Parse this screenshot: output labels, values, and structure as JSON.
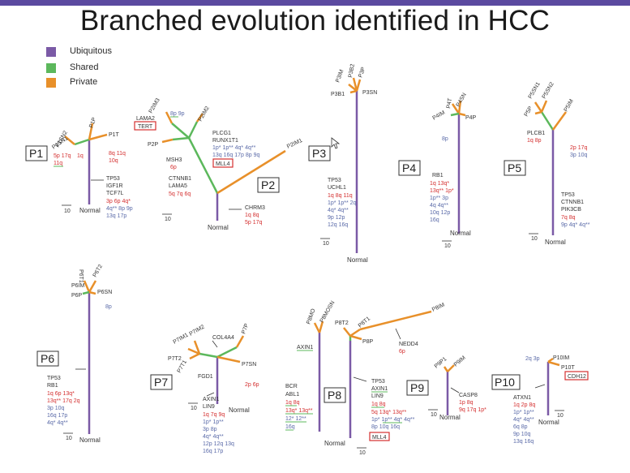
{
  "title": "Branched evolution identified in HCC",
  "legend": [
    {
      "label": "Ubiquitous",
      "color": "#7b5aa6"
    },
    {
      "label": "Shared",
      "color": "#5cb85c"
    },
    {
      "label": "Private",
      "color": "#e8902a"
    }
  ],
  "colors": {
    "ubiquitous": "#7b5aa6",
    "shared": "#5cb85c",
    "private": "#e8902a",
    "red": "#d43030",
    "blue": "#5a6aa8",
    "black": "#333333"
  },
  "common": {
    "normal": "Normal",
    "scale": "10"
  },
  "panels": {
    "P1": {
      "label": "P1",
      "samples": [
        "P1SN2",
        "P1P",
        "P1SN1",
        "P1T"
      ],
      "annotations": {
        "left_a": "5p 17q",
        "left_b": "1q",
        "left_c": "11q",
        "right_a": "8q 11q",
        "right_b": "10q",
        "genes": [
          "TP53",
          "IGF1R",
          "TCF7L"
        ],
        "trunk_a": "3p 6p 4q*",
        "trunk_b": "4q** 8p 9p",
        "trunk_c": "13q 17p"
      }
    },
    "P2": {
      "label": "P2",
      "samples": [
        "P2IM3",
        "P2IM2",
        "P2P",
        "P2IM1"
      ],
      "annotations": {
        "lama2": "LAMA2",
        "tert": "TERT",
        "top": "8p 9p",
        "plcg": "PLCG1",
        "runx": "RUNX1T1",
        "mid_a": "1p* 1p** 4q* 4q**",
        "mid_b": "13q 16q 17p 8p 9q",
        "msh3": "MSH3",
        "p6p": "6p",
        "mll4": "MLL4",
        "ctnnb1": "CTNNB1",
        "lama5": "LAMA5",
        "trunk": "5q 7q 6q",
        "chrm3": "CHRM3",
        "chr_a": "1q 8q",
        "chr_b": "5p 17q"
      }
    },
    "P3": {
      "label": "P3",
      "samples": [
        "P3IM",
        "P3B2",
        "P3P",
        "P3B1",
        "P3SN"
      ],
      "annotations": {
        "genes": [
          "TP53",
          "UCHL1"
        ],
        "a": "1q 8q 11q",
        "b": "1p* 1p** 2q",
        "c": "4q* 4q**",
        "d": "9p 12p",
        "e": "12q 16q"
      }
    },
    "P4": {
      "label": "P4",
      "samples": [
        "P4T",
        "P4SN",
        "P4IM",
        "P4P"
      ],
      "annotations": {
        "side": "8p",
        "gene": "RB1",
        "a": "1q 13q*",
        "b": "13q** 1p*",
        "c": "1p** 3p",
        "d": "4q 4q**",
        "e": "10q 12p",
        "f": "16q"
      }
    },
    "P5": {
      "label": "P5",
      "samples": [
        "P5SN1",
        "P5SN2",
        "P5P",
        "P5IM"
      ],
      "annotations": {
        "plcb1": "PLCB1",
        "left": "1q 8p",
        "r_a": "2p 17q",
        "r_b": "3p 10q",
        "genes": [
          "TP53",
          "CTNNB1",
          "PIK3CB"
        ],
        "a": "7q 8q",
        "b": "9p 4q* 4q**"
      }
    },
    "P6": {
      "label": "P6",
      "samples": [
        "P6T1",
        "P6T2",
        "P6IM",
        "P6P",
        "P6SN"
      ],
      "annotations": {
        "side": "8p",
        "genes": [
          "TP53",
          "RB1"
        ],
        "a": "1q 6p 13q*",
        "b": "13q** 17q 2q",
        "c": "3p 10q",
        "d": "16q 17p",
        "e": "4q* 4q**"
      }
    },
    "P7": {
      "label": "P7",
      "samples": [
        "P7IM1",
        "P7IM2",
        "P7P",
        "P7T2",
        "P7SN",
        "P7T1"
      ],
      "annotations": {
        "col4a4": "COL4A4",
        "fgd1": "FGD1",
        "side": "2p 6p",
        "genes": [
          "AXIN1",
          "LIN9"
        ],
        "a": "1q 7q 9q",
        "b": "1p* 1p**",
        "c": "3p 8p",
        "d": "4q* 4q**",
        "e": "12p 12q 13q",
        "f": "16q 17p"
      }
    },
    "P8": {
      "label": "P8",
      "samples": [
        "P8MO",
        "P8MOSN",
        "P8T1",
        "P8T2",
        "P8IM",
        "P8P"
      ],
      "annotations": {
        "axin1": "AXIN1",
        "nedd4": "NEDD4",
        "side6p": "6p",
        "bcr": "BCR",
        "abl1": "ABL1",
        "la": "1q 8q",
        "lb": "13q* 13q**",
        "lc": "12* 12**",
        "ld": "16q",
        "genes": [
          "TP53",
          "AXIN1",
          "LIN9"
        ],
        "ra": "1q 8q",
        "rb": "5q 13q* 13q**",
        "rc": "1p* 1p** 4q* 4q**",
        "rd": "8p 10q 16q",
        "mll4": "MLL4"
      }
    },
    "P9": {
      "label": "P9",
      "samples": [
        "P9P1",
        "P9IM"
      ],
      "annotations": {
        "gene": "CASP8",
        "a": "1p 8q",
        "b": "9q 17q 1p*"
      }
    },
    "P10": {
      "label": "P10",
      "samples": [
        "P10IM",
        "P10T"
      ],
      "annotations": {
        "top": "2q 3p",
        "cdh12": "CDH12",
        "gene": "ATXN1",
        "a": "1q 2p 8q",
        "b": "1p* 1p**",
        "c": "4q* 4q**",
        "d": "6q 8p",
        "e": "9p 10q",
        "f": "13q 16q"
      }
    }
  }
}
